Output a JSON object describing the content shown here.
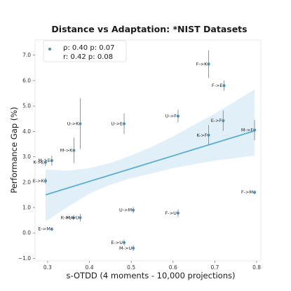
{
  "chart_data": {
    "type": "scatter",
    "title": "Distance vs Adaptation: *NIST Datasets",
    "xlabel": "s-OTDD (4 moments - 10,000 projections)",
    "ylabel": "Performance Gap (%)",
    "xlim": [
      0.27,
      0.81
    ],
    "ylim": [
      -1.1,
      7.6
    ],
    "xticks": [
      "0.3",
      "0.4",
      "0.5",
      "0.6",
      "0.7",
      "0.8"
    ],
    "yticks": [
      "−1.0",
      "0.0",
      "1.0",
      "2.0",
      "3.0",
      "4.0",
      "5.0",
      "6.0",
      "7.0"
    ],
    "grid": false,
    "legend": {
      "placement": "top-left",
      "line1": "ρ: 0.40  p: 0.07",
      "line2": "r: 0.42  p: 0.08"
    },
    "colors": {
      "point": "#4a8fb8",
      "errorbar": "#888888",
      "regression": "#5aafd0",
      "band": "#d6eaf5"
    },
    "regression": {
      "x0": 0.295,
      "y0": 1.5,
      "x1": 0.795,
      "y1": 4.02
    },
    "confidence_band": {
      "x": [
        0.295,
        0.35,
        0.4,
        0.45,
        0.5,
        0.55,
        0.6,
        0.65,
        0.7,
        0.75,
        0.795
      ],
      "lower": [
        0.45,
        1.05,
        1.55,
        1.9,
        2.15,
        2.35,
        2.55,
        2.7,
        2.85,
        2.95,
        3.05
      ],
      "upper": [
        2.5,
        2.45,
        2.55,
        2.75,
        3.05,
        3.4,
        3.8,
        4.25,
        4.7,
        5.2,
        5.65
      ]
    },
    "points": [
      {
        "label": "F->K",
        "x": 0.685,
        "y": 6.65,
        "err": 0.55
      },
      {
        "label": "F->E",
        "x": 0.722,
        "y": 5.8,
        "err": 0.2
      },
      {
        "label": "U->F",
        "x": 0.612,
        "y": 4.6,
        "err": 0.25
      },
      {
        "label": "E->F",
        "x": 0.72,
        "y": 4.42,
        "err": 0.4
      },
      {
        "label": "M->F",
        "x": 0.795,
        "y": 4.05,
        "err": 0.4
      },
      {
        "label": "K->F",
        "x": 0.685,
        "y": 3.85,
        "err": 0.4
      },
      {
        "label": "U->K",
        "x": 0.378,
        "y": 4.3,
        "err": 1.0
      },
      {
        "label": "U->E",
        "x": 0.483,
        "y": 4.3,
        "err": 0.4
      },
      {
        "label": "M->K",
        "x": 0.363,
        "y": 3.25,
        "err": 0.5
      },
      {
        "label": "M->E",
        "x": 0.31,
        "y": 2.85,
        "err": 0.2
      },
      {
        "label": "K->E",
        "x": 0.295,
        "y": 2.78,
        "err": 0.15
      },
      {
        "label": "E->K",
        "x": 0.295,
        "y": 2.05,
        "err": 0.12
      },
      {
        "label": "F->M",
        "x": 0.795,
        "y": 1.6,
        "err": 0.08
      },
      {
        "label": "U->M",
        "x": 0.505,
        "y": 0.9,
        "err": 0.12
      },
      {
        "label": "F->U",
        "x": 0.612,
        "y": 0.78,
        "err": 0.15
      },
      {
        "label": "K->U",
        "x": 0.362,
        "y": 0.6,
        "err": 0.1
      },
      {
        "label": "M->U",
        "x": 0.378,
        "y": 0.6,
        "err": 0.15
      },
      {
        "label": "E->M",
        "x": 0.31,
        "y": 0.15,
        "err": 0.07
      },
      {
        "label": "E->U",
        "x": 0.483,
        "y": -0.38,
        "err": 0.12
      },
      {
        "label": "M->U",
        "x": 0.505,
        "y": -0.6,
        "err": 0.12
      }
    ]
  }
}
